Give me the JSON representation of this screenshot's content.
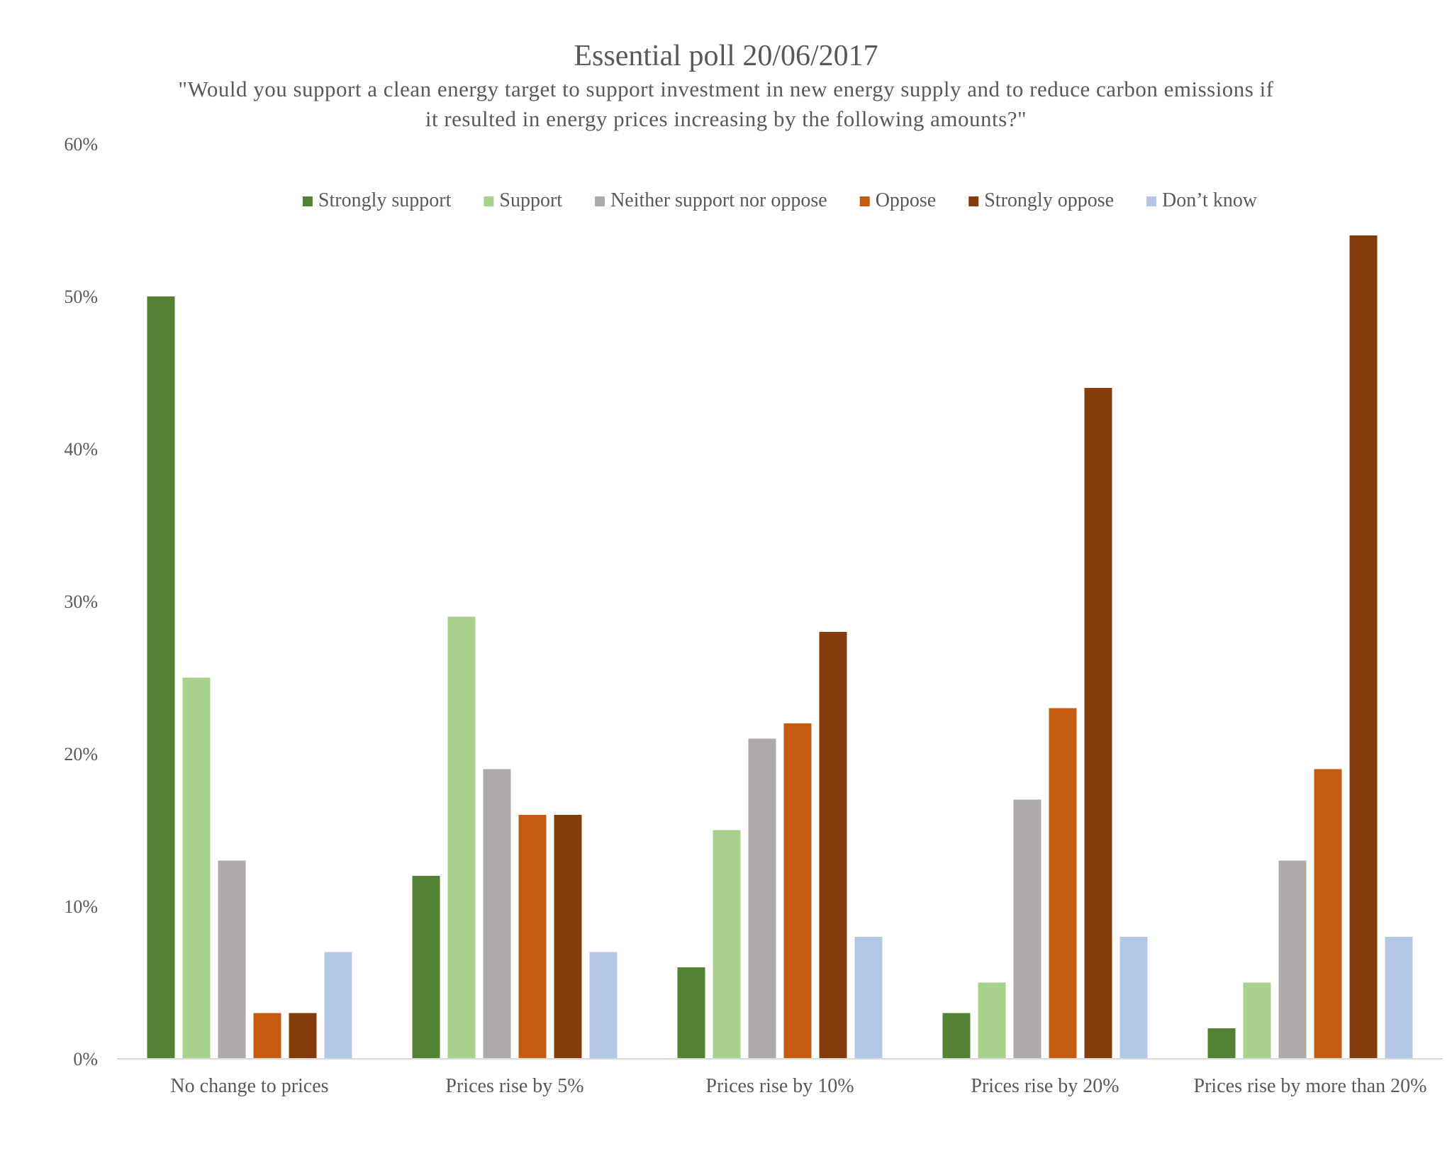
{
  "chart_data": {
    "type": "bar",
    "title": "Essential poll 20/06/2017",
    "subtitle_lines": [
      "\"Would you support a clean energy target to support investment in new energy supply and to reduce carbon emissions if",
      "it resulted in energy prices increasing by the following amounts?\""
    ],
    "xlabel": "",
    "ylabel": "",
    "ylim": [
      0,
      60
    ],
    "yticks": [
      0,
      10,
      20,
      30,
      40,
      50,
      60
    ],
    "ytick_labels": [
      "0%",
      "10%",
      "20%",
      "30%",
      "40%",
      "50%",
      "60%"
    ],
    "grid": false,
    "legend_position": "top",
    "categories": [
      "No change to prices",
      "Prices rise by 5%",
      "Prices rise by 10%",
      "Prices rise by 20%",
      "Prices rise by more than 20%"
    ],
    "series": [
      {
        "name": "Strongly support",
        "color": "#548235",
        "values": [
          50,
          12,
          6,
          3,
          2
        ]
      },
      {
        "name": "Support",
        "color": "#A9D18E",
        "values": [
          25,
          29,
          15,
          5,
          5
        ]
      },
      {
        "name": "Neither support nor oppose",
        "color": "#AEAAAA",
        "values": [
          13,
          19,
          21,
          17,
          13
        ]
      },
      {
        "name": "Oppose",
        "color": "#C55A11",
        "values": [
          3,
          16,
          22,
          23,
          19
        ]
      },
      {
        "name": "Strongly oppose",
        "color": "#843C0C",
        "values": [
          3,
          16,
          28,
          44,
          54
        ]
      },
      {
        "name": "Don’t know",
        "color": "#B4C7E7",
        "values": [
          7,
          7,
          8,
          8,
          8
        ]
      }
    ],
    "axis_color": "#D9D9D9"
  }
}
